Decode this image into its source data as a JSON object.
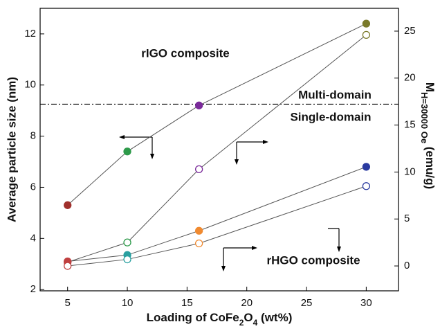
{
  "chart_data": {
    "type": "line",
    "xlabel": [
      "Loading of CoFe",
      "2",
      "O",
      "4",
      " (wt%)"
    ],
    "ylabel": "Average particle size (nm)",
    "y2label": [
      "M",
      "H=30000 Oe",
      " (emu/g)"
    ],
    "xlim": [
      2.7,
      32.7
    ],
    "xticks": [
      5,
      10,
      15,
      20,
      25,
      30
    ],
    "ylim": [
      1.95,
      13.0
    ],
    "yticks": [
      2,
      4,
      6,
      8,
      10,
      12
    ],
    "y2lim": [
      -2.65,
      27.43
    ],
    "y2ticks": [
      0,
      5,
      10,
      15,
      20,
      25
    ],
    "line_color": "#555555",
    "series": [
      {
        "x": [
          5,
          10,
          16,
          30
        ],
        "values": [
          5.3,
          7.4,
          9.2,
          12.4
        ],
        "filled": true,
        "colors": [
          "#a0302c",
          "#2e9a4a",
          "#7a2a9a",
          "#7a7a2a"
        ]
      },
      {
        "x": [
          5,
          10,
          16,
          30
        ],
        "values": [
          0.4,
          2.5,
          10.3,
          24.6
        ],
        "axis": "y2",
        "filled": false,
        "colors": [
          "#a0302c",
          "#2e9a4a",
          "#7a2a9a",
          "#7a7a2a"
        ]
      },
      {
        "x": [
          5,
          10,
          16,
          30
        ],
        "values": [
          3.1,
          3.35,
          4.3,
          6.8
        ],
        "filled": true,
        "colors": [
          "#c04040",
          "#2aa0a0",
          "#f08a30",
          "#2a3aa0"
        ]
      },
      {
        "x": [
          5,
          10,
          16,
          30
        ],
        "values": [
          0,
          0.7,
          2.4,
          8.5
        ],
        "axis": "y2",
        "filled": false,
        "colors": [
          "#c04040",
          "#2aa0a0",
          "#f08a30",
          "#2a3aa0"
        ]
      }
    ],
    "hline": 9.25,
    "annotations": [
      "rIGO composite",
      "Multi-domain",
      "Single-domain",
      "rHGO composite"
    ]
  }
}
